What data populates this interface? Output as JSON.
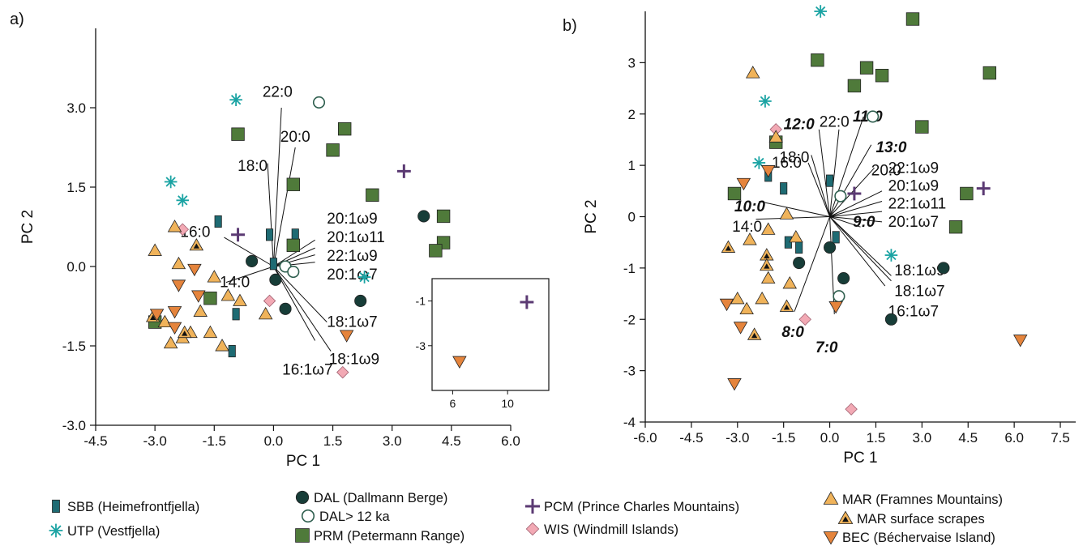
{
  "panels": {
    "a": {
      "label": "a)"
    },
    "b": {
      "label": "b)"
    }
  },
  "colors": {
    "SBB": "#1e6b73",
    "UTP": "#1aa3a3",
    "DAL": "#173d38",
    "DALo": "#2f5f4f",
    "PRM": "#4f7a3a",
    "PCM": "#5b3a73",
    "WIS": "#f2a9b4",
    "MAR": "#f0b35a",
    "BEC": "#e5843c",
    "stroke": "#222222",
    "line": "#111111"
  },
  "legend": [
    {
      "key": "SBB",
      "shape": "rect",
      "text": "SBB (Heimefrontfjella)"
    },
    {
      "key": "UTP",
      "shape": "star",
      "text": "UTP (Vestfjella)"
    },
    {
      "key": "DAL",
      "shape": "dot",
      "text": "DAL (Dallmann Berge)"
    },
    {
      "key": "DALo",
      "shape": "ring",
      "text": "DAL> 12 ka"
    },
    {
      "key": "PRM",
      "shape": "square",
      "text": "PRM (Petermann Range)"
    },
    {
      "key": "PCM",
      "shape": "plus",
      "text": "PCM (Prince Charles Mountains)"
    },
    {
      "key": "WIS",
      "shape": "diamond",
      "text": "WIS (Windmill Islands)"
    },
    {
      "key": "MAR",
      "shape": "tri",
      "text": "MAR (Framnes Mountains)"
    },
    {
      "key": "MARs",
      "shape": "tris",
      "text": "MAR surface scrapes"
    },
    {
      "key": "BEC",
      "shape": "tridown",
      "text": "BEC (Béchervaise Island)"
    }
  ],
  "chart_data": [
    {
      "type": "scatter",
      "panel": "a",
      "xlabel": "PC 1",
      "ylabel": "PC 2",
      "xlim": [
        -4.5,
        6.0
      ],
      "ylim": [
        -3.0,
        4.5
      ],
      "xticks": [
        "-4.5",
        "-3.0",
        "-1.5",
        "0.0",
        "1.5",
        "3.0",
        "4.5",
        "6.0"
      ],
      "yticks": [
        "-3.0",
        "-1.5",
        "0.0",
        "1.5",
        "3.0"
      ],
      "points": [
        {
          "g": "SBB",
          "x": -1.4,
          "y": 0.85
        },
        {
          "g": "SBB",
          "x": -0.1,
          "y": 0.6
        },
        {
          "g": "SBB",
          "x": 0.0,
          "y": 0.05
        },
        {
          "g": "SBB",
          "x": 0.55,
          "y": 0.6
        },
        {
          "g": "SBB",
          "x": -0.95,
          "y": -0.9
        },
        {
          "g": "SBB",
          "x": -1.05,
          "y": -1.6
        },
        {
          "g": "UTP",
          "x": -0.95,
          "y": 3.15
        },
        {
          "g": "UTP",
          "x": -2.6,
          "y": 1.6
        },
        {
          "g": "UTP",
          "x": -2.3,
          "y": 1.25
        },
        {
          "g": "UTP",
          "x": 2.3,
          "y": -0.2
        },
        {
          "g": "DAL",
          "x": -0.55,
          "y": 0.1
        },
        {
          "g": "DAL",
          "x": 0.05,
          "y": -0.25
        },
        {
          "g": "DAL",
          "x": 0.3,
          "y": -0.8
        },
        {
          "g": "DAL",
          "x": 2.2,
          "y": -0.65
        },
        {
          "g": "DAL",
          "x": 3.8,
          "y": 0.95
        },
        {
          "g": "DALo",
          "x": 1.15,
          "y": 3.1
        },
        {
          "g": "DALo",
          "x": 0.3,
          "y": 0.0
        },
        {
          "g": "DALo",
          "x": 0.5,
          "y": -0.1
        },
        {
          "g": "PRM",
          "x": -0.9,
          "y": 2.5
        },
        {
          "g": "PRM",
          "x": 1.5,
          "y": 2.2
        },
        {
          "g": "PRM",
          "x": 1.8,
          "y": 2.6
        },
        {
          "g": "PRM",
          "x": 0.5,
          "y": 1.55
        },
        {
          "g": "PRM",
          "x": 2.5,
          "y": 1.35
        },
        {
          "g": "PRM",
          "x": 0.5,
          "y": 0.4
        },
        {
          "g": "PRM",
          "x": 4.3,
          "y": 0.95
        },
        {
          "g": "PRM",
          "x": 4.3,
          "y": 0.45
        },
        {
          "g": "PRM",
          "x": 4.1,
          "y": 0.3
        },
        {
          "g": "PRM",
          "x": -1.6,
          "y": -0.6
        },
        {
          "g": "PRM",
          "x": -3.0,
          "y": -1.05
        },
        {
          "g": "PCM",
          "x": 3.3,
          "y": 1.8
        },
        {
          "g": "PCM",
          "x": -0.9,
          "y": 0.6
        },
        {
          "g": "WIS",
          "x": -2.3,
          "y": 0.7
        },
        {
          "g": "WIS",
          "x": -0.1,
          "y": -0.65
        },
        {
          "g": "WIS",
          "x": 1.75,
          "y": -2.0
        },
        {
          "g": "MAR",
          "x": -2.5,
          "y": 0.75
        },
        {
          "g": "MAR",
          "x": -3.0,
          "y": 0.3
        },
        {
          "g": "MAR",
          "x": -2.4,
          "y": 0.05
        },
        {
          "g": "MAR",
          "x": -1.5,
          "y": -0.2
        },
        {
          "g": "MAR",
          "x": -1.15,
          "y": -0.55
        },
        {
          "g": "MAR",
          "x": -0.85,
          "y": -0.65
        },
        {
          "g": "MAR",
          "x": -0.2,
          "y": -0.9
        },
        {
          "g": "MAR",
          "x": -1.85,
          "y": -0.85
        },
        {
          "g": "MAR",
          "x": -2.75,
          "y": -1.05
        },
        {
          "g": "MAR",
          "x": -2.1,
          "y": -1.25
        },
        {
          "g": "MAR",
          "x": -2.6,
          "y": -1.45
        },
        {
          "g": "MAR",
          "x": -1.6,
          "y": -1.25
        },
        {
          "g": "MAR",
          "x": -1.3,
          "y": -1.5
        },
        {
          "g": "MAR",
          "x": -2.3,
          "y": -1.35
        },
        {
          "g": "MARs",
          "x": -1.95,
          "y": 0.4
        },
        {
          "g": "MARs",
          "x": -3.05,
          "y": -0.95
        },
        {
          "g": "MARs",
          "x": -2.25,
          "y": -1.25
        },
        {
          "g": "BEC",
          "x": -2.0,
          "y": -0.05
        },
        {
          "g": "BEC",
          "x": -2.4,
          "y": -0.35
        },
        {
          "g": "BEC",
          "x": -1.9,
          "y": -0.55
        },
        {
          "g": "BEC",
          "x": -2.5,
          "y": -0.85
        },
        {
          "g": "BEC",
          "x": -2.95,
          "y": -0.9
        },
        {
          "g": "BEC",
          "x": -2.5,
          "y": -1.15
        },
        {
          "g": "BEC",
          "x": 1.85,
          "y": -1.3
        }
      ],
      "loadings": [
        {
          "label": "22:0",
          "x": 0.2,
          "y": 3.0,
          "lx": 0.1,
          "ly": 3.3,
          "anchor": "middle"
        },
        {
          "label": "20:0",
          "x": 0.55,
          "y": 2.25,
          "lx": 0.55,
          "ly": 2.45,
          "anchor": "middle"
        },
        {
          "label": "18:0",
          "x": -0.15,
          "y": 1.95,
          "lx": -0.15,
          "ly": 1.9,
          "anchor": "end"
        },
        {
          "label": "16:0",
          "x": -1.25,
          "y": 0.55,
          "lx": -1.6,
          "ly": 0.65,
          "anchor": "end"
        },
        {
          "label": "14:0",
          "x": -1.2,
          "y": -0.3,
          "lx": -0.6,
          "ly": -0.3,
          "anchor": "end"
        },
        {
          "label": "20:1ω9",
          "x": 1.05,
          "y": 0.5,
          "lx": 1.35,
          "ly": 0.9,
          "anchor": "start"
        },
        {
          "label": "20:1ω11",
          "x": 1.05,
          "y": 0.35,
          "lx": 1.35,
          "ly": 0.55,
          "anchor": "start"
        },
        {
          "label": "22:1ω9",
          "x": 1.05,
          "y": 0.22,
          "lx": 1.35,
          "ly": 0.2,
          "anchor": "start"
        },
        {
          "label": "20:1ω7",
          "x": 1.05,
          "y": 0.08,
          "lx": 1.35,
          "ly": -0.15,
          "anchor": "start"
        },
        {
          "label": "18:1ω7",
          "x": 1.35,
          "y": -1.05,
          "lx": 1.35,
          "ly": -1.05,
          "anchor": "start"
        },
        {
          "label": "18:1ω9",
          "x": 1.05,
          "y": -1.4,
          "lx": 1.4,
          "ly": -1.75,
          "anchor": "start"
        },
        {
          "label": "16:1ω7",
          "x": 1.45,
          "y": -1.6,
          "lx": 1.5,
          "ly": -1.95,
          "anchor": "end"
        }
      ],
      "inset": {
        "xticks": [
          "6",
          "10"
        ],
        "yticks": [
          "-1",
          "-3"
        ],
        "xlim": [
          4.5,
          13.0
        ],
        "ylim": [
          -5.0,
          0.0
        ],
        "points": [
          {
            "g": "PCM",
            "x": 11.4,
            "y": -1.05
          },
          {
            "g": "BEC",
            "x": 6.5,
            "y": -3.7
          }
        ]
      }
    },
    {
      "type": "scatter",
      "panel": "b",
      "xlabel": "PC 1",
      "ylabel": "PC 2",
      "xlim": [
        -6.0,
        8.0
      ],
      "ylim": [
        -4.0,
        4.0
      ],
      "xticks": [
        "-6.0",
        "-4.5",
        "-3.0",
        "-1.5",
        "0.0",
        "1.5",
        "3.0",
        "4.5",
        "6.0",
        "7.5"
      ],
      "yticks": [
        "-4",
        "-3",
        "-2",
        "-1",
        "0",
        "1",
        "2",
        "3"
      ],
      "points": [
        {
          "g": "SBB",
          "x": -2.0,
          "y": 0.8
        },
        {
          "g": "SBB",
          "x": 0.0,
          "y": 0.7
        },
        {
          "g": "SBB",
          "x": -1.5,
          "y": 0.55
        },
        {
          "g": "SBB",
          "x": -1.35,
          "y": -0.5
        },
        {
          "g": "SBB",
          "x": -1.0,
          "y": -0.6
        },
        {
          "g": "SBB",
          "x": 0.2,
          "y": -0.4
        },
        {
          "g": "UTP",
          "x": -0.3,
          "y": 4.0
        },
        {
          "g": "UTP",
          "x": -2.1,
          "y": 2.25
        },
        {
          "g": "UTP",
          "x": -2.3,
          "y": 1.05
        },
        {
          "g": "UTP",
          "x": 2.0,
          "y": -0.75
        },
        {
          "g": "DAL",
          "x": -1.0,
          "y": -0.9
        },
        {
          "g": "DAL",
          "x": 0.0,
          "y": -0.6
        },
        {
          "g": "DAL",
          "x": 0.45,
          "y": -1.2
        },
        {
          "g": "DAL",
          "x": 3.7,
          "y": -1.0
        },
        {
          "g": "DAL",
          "x": 2.0,
          "y": -2.0
        },
        {
          "g": "DALo",
          "x": 1.4,
          "y": 1.95
        },
        {
          "g": "DALo",
          "x": 0.35,
          "y": 0.4
        },
        {
          "g": "DALo",
          "x": 0.3,
          "y": -1.55
        },
        {
          "g": "PRM",
          "x": 2.7,
          "y": 3.85
        },
        {
          "g": "PRM",
          "x": -0.4,
          "y": 3.05
        },
        {
          "g": "PRM",
          "x": 1.2,
          "y": 2.9
        },
        {
          "g": "PRM",
          "x": 0.8,
          "y": 2.55
        },
        {
          "g": "PRM",
          "x": 1.7,
          "y": 2.75
        },
        {
          "g": "PRM",
          "x": 5.2,
          "y": 2.8
        },
        {
          "g": "PRM",
          "x": 3.0,
          "y": 1.75
        },
        {
          "g": "PRM",
          "x": -1.75,
          "y": 1.45
        },
        {
          "g": "PRM",
          "x": -3.1,
          "y": 0.45
        },
        {
          "g": "PRM",
          "x": 4.45,
          "y": 0.45
        },
        {
          "g": "PRM",
          "x": 4.1,
          "y": -0.2
        },
        {
          "g": "PCM",
          "x": 0.8,
          "y": 0.45
        },
        {
          "g": "PCM",
          "x": 5.0,
          "y": 0.55
        },
        {
          "g": "WIS",
          "x": -1.75,
          "y": 1.7
        },
        {
          "g": "WIS",
          "x": -0.8,
          "y": -2.0
        },
        {
          "g": "WIS",
          "x": 0.7,
          "y": -3.75
        },
        {
          "g": "MAR",
          "x": -2.5,
          "y": 2.8
        },
        {
          "g": "MAR",
          "x": -1.75,
          "y": 1.55
        },
        {
          "g": "MAR",
          "x": -1.4,
          "y": 0.05
        },
        {
          "g": "MAR",
          "x": -2.0,
          "y": -0.25
        },
        {
          "g": "MAR",
          "x": -2.6,
          "y": -0.45
        },
        {
          "g": "MAR",
          "x": -1.1,
          "y": -0.4
        },
        {
          "g": "MAR",
          "x": -2.0,
          "y": -1.2
        },
        {
          "g": "MAR",
          "x": -3.0,
          "y": -1.6
        },
        {
          "g": "MAR",
          "x": -2.7,
          "y": -1.8
        },
        {
          "g": "MAR",
          "x": -2.2,
          "y": -1.6
        },
        {
          "g": "MAR",
          "x": -1.3,
          "y": -1.3
        },
        {
          "g": "MARs",
          "x": -3.3,
          "y": -0.6
        },
        {
          "g": "MARs",
          "x": -2.05,
          "y": -0.75
        },
        {
          "g": "MARs",
          "x": -2.05,
          "y": -0.95
        },
        {
          "g": "MARs",
          "x": -2.45,
          "y": -2.3
        },
        {
          "g": "MARs",
          "x": -1.4,
          "y": -1.75
        },
        {
          "g": "BEC",
          "x": -2.8,
          "y": 0.65
        },
        {
          "g": "BEC",
          "x": -2.0,
          "y": 0.9
        },
        {
          "g": "BEC",
          "x": -3.35,
          "y": -1.7
        },
        {
          "g": "BEC",
          "x": -2.9,
          "y": -2.15
        },
        {
          "g": "BEC",
          "x": -3.1,
          "y": -3.25
        },
        {
          "g": "BEC",
          "x": 0.2,
          "y": -1.75
        },
        {
          "g": "BEC",
          "x": 6.2,
          "y": -2.4
        }
      ],
      "loadings": [
        {
          "label": "11:0",
          "x": 1.1,
          "y": 1.95,
          "lx": 0.75,
          "ly": 1.95,
          "anchor": "start",
          "bold": true
        },
        {
          "label": "12:0",
          "x": -0.35,
          "y": 1.7,
          "lx": -1.0,
          "ly": 1.8,
          "anchor": "middle",
          "bold": true
        },
        {
          "label": "22:0",
          "x": 0.3,
          "y": 1.7,
          "lx": 0.15,
          "ly": 1.85,
          "anchor": "middle"
        },
        {
          "label": "13:0",
          "x": 1.35,
          "y": 1.4,
          "lx": 1.5,
          "ly": 1.35,
          "anchor": "start",
          "bold": true
        },
        {
          "label": "18:0",
          "x": -0.6,
          "y": 1.2,
          "lx": -1.15,
          "ly": 1.15,
          "anchor": "middle"
        },
        {
          "label": "16:0",
          "x": -0.7,
          "y": 1.05,
          "lx": -1.4,
          "ly": 1.05,
          "anchor": "middle"
        },
        {
          "label": "20:0",
          "x": 1.45,
          "y": 0.95,
          "lx": 1.35,
          "ly": 0.9,
          "anchor": "start"
        },
        {
          "label": "10:0",
          "x": -2.3,
          "y": 0.3,
          "lx": -2.1,
          "ly": 0.2,
          "anchor": "end",
          "bold": true
        },
        {
          "label": "14:0",
          "x": -2.4,
          "y": -0.05,
          "lx": -2.2,
          "ly": -0.2,
          "anchor": "end"
        },
        {
          "label": "22:1ω9",
          "x": 1.7,
          "y": 0.5,
          "lx": 1.9,
          "ly": 0.95,
          "anchor": "start"
        },
        {
          "label": "20:1ω9",
          "x": 1.7,
          "y": 0.3,
          "lx": 1.9,
          "ly": 0.6,
          "anchor": "start"
        },
        {
          "label": "22:1ω11",
          "x": 1.7,
          "y": 0.1,
          "lx": 1.9,
          "ly": 0.25,
          "anchor": "start"
        },
        {
          "label": "20:1ω7",
          "x": 1.7,
          "y": -0.1,
          "lx": 1.9,
          "ly": -0.1,
          "anchor": "start"
        },
        {
          "label": "9:0",
          "x": 1.0,
          "y": -0.2,
          "lx": 0.75,
          "ly": -0.1,
          "anchor": "start",
          "bold": true
        },
        {
          "label": "18:1ω9",
          "x": 2.0,
          "y": -1.15,
          "lx": 2.1,
          "ly": -1.05,
          "anchor": "start"
        },
        {
          "label": "18:1ω7",
          "x": 2.0,
          "y": -1.25,
          "lx": 2.1,
          "ly": -1.45,
          "anchor": "start"
        },
        {
          "label": "16:1ω7",
          "x": 1.8,
          "y": -1.35,
          "lx": 1.9,
          "ly": -1.85,
          "anchor": "start"
        },
        {
          "label": "8:0",
          "x": -1.15,
          "y": -1.85,
          "lx": -1.2,
          "ly": -2.25,
          "anchor": "middle",
          "bold": true
        },
        {
          "label": "7:0",
          "x": 0.15,
          "y": -1.9,
          "lx": -0.1,
          "ly": -2.55,
          "anchor": "middle",
          "bold": true
        }
      ]
    }
  ]
}
